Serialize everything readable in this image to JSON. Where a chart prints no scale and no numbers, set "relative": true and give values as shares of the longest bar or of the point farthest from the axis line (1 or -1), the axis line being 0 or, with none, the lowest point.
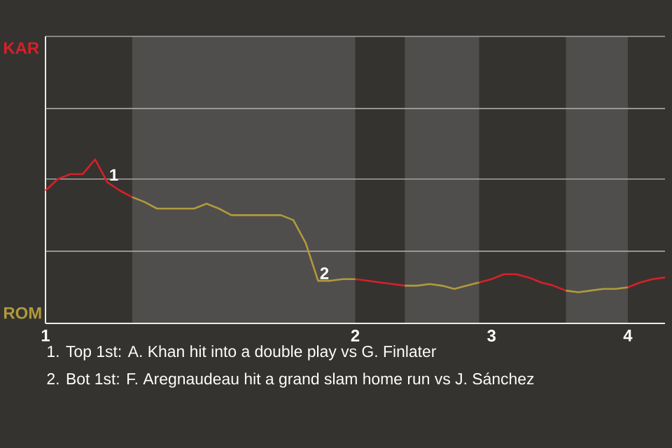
{
  "chart_data": {
    "type": "line",
    "relative": true,
    "categories": [
      "1",
      null,
      null,
      null,
      null,
      null,
      null,
      null,
      null,
      null,
      null,
      null,
      null,
      null,
      null,
      null,
      null,
      null,
      null,
      null,
      null,
      null,
      null,
      null,
      null,
      "2",
      null,
      null,
      null,
      null,
      null,
      null,
      null,
      null,
      null,
      null,
      "3",
      null,
      null,
      null,
      null,
      null,
      null,
      null,
      null,
      null,
      null,
      "4",
      null,
      null,
      null
    ],
    "series": [
      {
        "name": "KAR",
        "color": "#d7202a",
        "values": [
          0.81,
          0.88,
          0.91,
          0.91,
          1,
          0.86,
          0.81,
          0.77,
          null,
          null,
          null,
          null,
          null,
          null,
          null,
          null,
          null,
          null,
          null,
          null,
          null,
          null,
          null,
          null,
          null,
          0.27,
          0.26,
          0.25,
          0.24,
          0.23,
          null,
          null,
          null,
          null,
          null,
          0.25,
          0.27,
          0.3,
          0.3,
          0.28,
          0.25,
          0.23,
          0.2,
          null,
          null,
          null,
          null,
          0.22,
          0.25,
          0.27,
          0.28
        ]
      },
      {
        "name": "ROM",
        "color": "#b09a3c",
        "values": [
          null,
          null,
          null,
          null,
          null,
          null,
          null,
          0.77,
          0.74,
          0.7,
          0.7,
          0.7,
          0.7,
          0.73,
          0.7,
          0.66,
          0.66,
          0.66,
          0.66,
          0.66,
          0.63,
          0.49,
          0.26,
          0.26,
          0.27,
          0.27,
          null,
          null,
          null,
          0.23,
          0.23,
          0.24,
          0.23,
          0.21,
          0.23,
          0.25,
          null,
          null,
          null,
          null,
          null,
          null,
          0.2,
          0.19,
          0.2,
          0.21,
          0.21,
          0.22,
          null,
          null,
          null
        ]
      }
    ],
    "ref_lines": [
      {
        "axis": "y",
        "value": 0.44,
        "color": "#a4a3a1"
      },
      {
        "axis": "y",
        "value": 0.88,
        "color": "#a4a3a1"
      },
      {
        "axis": "y",
        "value": 1.31,
        "color": "#a4a3a1"
      }
    ],
    "annotations": [
      {
        "text": "1",
        "y": 0.86
      },
      {
        "text": "2",
        "y": 0.26
      },
      "1. Top 1st: A. Khan hit into a double play vs G. Finlater",
      "2. Bot 1st: F. Aregnaudeau hit a grand slam home run vs J. Sánchez"
    ]
  }
}
